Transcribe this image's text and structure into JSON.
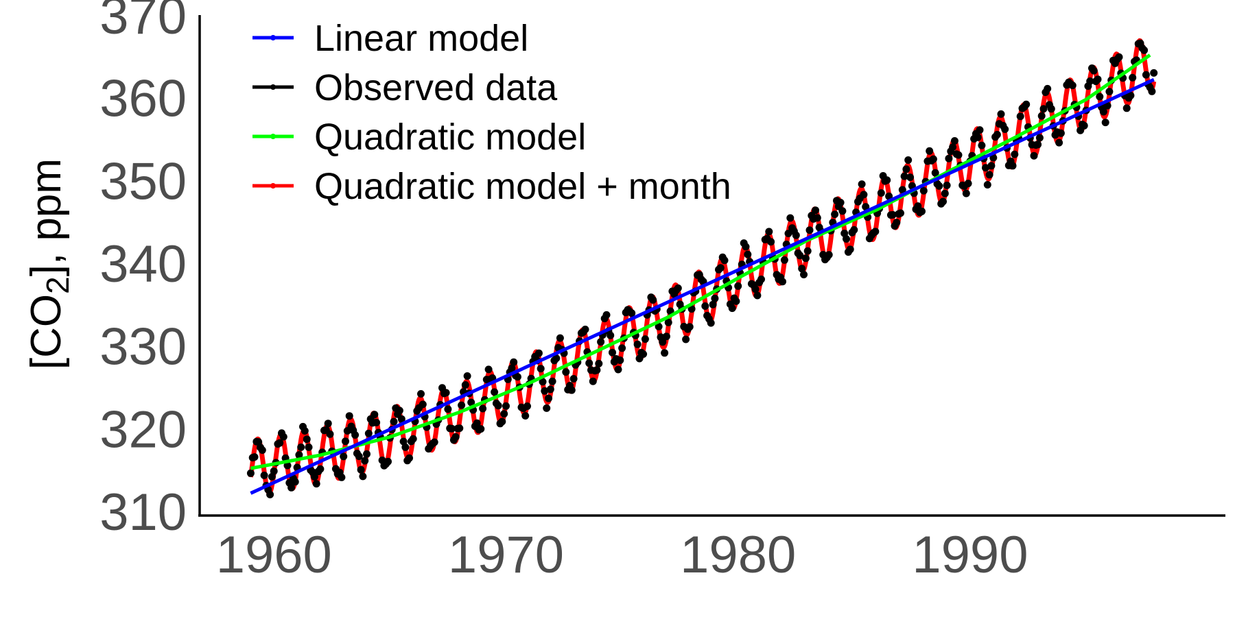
{
  "chart_data": {
    "type": "line",
    "title": "",
    "xlabel": "",
    "ylabel": {
      "prefix": "[CO",
      "subscript": "2",
      "suffix": "], ppm"
    },
    "xlim": [
      1956.8,
      2001
    ],
    "ylim": [
      309.5,
      370
    ],
    "x_ticks": [
      1960,
      1970,
      1980,
      1990
    ],
    "y_ticks": [
      310,
      320,
      330,
      340,
      350,
      360,
      370
    ],
    "grid": false,
    "legend_position": "top-left",
    "series": [
      {
        "name": "Linear model",
        "color": "#0000ff",
        "kind": "line",
        "points": [
          [
            1959.0,
            312.2
          ],
          [
            1997.92,
            362.2
          ]
        ]
      },
      {
        "name": "Observed data",
        "color": "#000000",
        "kind": "points",
        "baseline": [
          [
            1959,
            315.2
          ],
          [
            1962,
            316.8
          ],
          [
            1965,
            319.0
          ],
          [
            1968,
            322.0
          ],
          [
            1971,
            325.5
          ],
          [
            1974,
            329.5
          ],
          [
            1977,
            333.5
          ],
          [
            1980,
            338.2
          ],
          [
            1983,
            342.8
          ],
          [
            1986,
            346.5
          ],
          [
            1989,
            351.0
          ],
          [
            1992,
            355.3
          ],
          [
            1995,
            359.8
          ],
          [
            1997.92,
            364.5
          ]
        ],
        "seasonal_amplitude": 3.2,
        "observations": "monthly, 1959.0–1997.92"
      },
      {
        "name": "Quadratic model",
        "color": "#00ff00",
        "kind": "line",
        "points": [
          [
            1959,
            315.2
          ],
          [
            1962,
            316.8
          ],
          [
            1965,
            319.0
          ],
          [
            1968,
            322.0
          ],
          [
            1971,
            325.5
          ],
          [
            1974,
            329.5
          ],
          [
            1977,
            333.5
          ],
          [
            1980,
            338.2
          ],
          [
            1983,
            342.8
          ],
          [
            1986,
            346.5
          ],
          [
            1989,
            351.0
          ],
          [
            1992,
            355.3
          ],
          [
            1995,
            359.8
          ],
          [
            1997.92,
            365.5
          ]
        ]
      },
      {
        "name": "Quadratic model + month",
        "color": "#ff0000",
        "kind": "line",
        "baseline": [
          [
            1959,
            315.2
          ],
          [
            1962,
            316.8
          ],
          [
            1965,
            319.0
          ],
          [
            1968,
            322.0
          ],
          [
            1971,
            325.5
          ],
          [
            1974,
            329.5
          ],
          [
            1977,
            333.5
          ],
          [
            1980,
            338.2
          ],
          [
            1983,
            342.8
          ],
          [
            1986,
            346.5
          ],
          [
            1989,
            351.0
          ],
          [
            1992,
            355.3
          ],
          [
            1995,
            359.8
          ],
          [
            1997.92,
            364.5
          ]
        ],
        "seasonal_amplitude": 3.4
      }
    ]
  }
}
